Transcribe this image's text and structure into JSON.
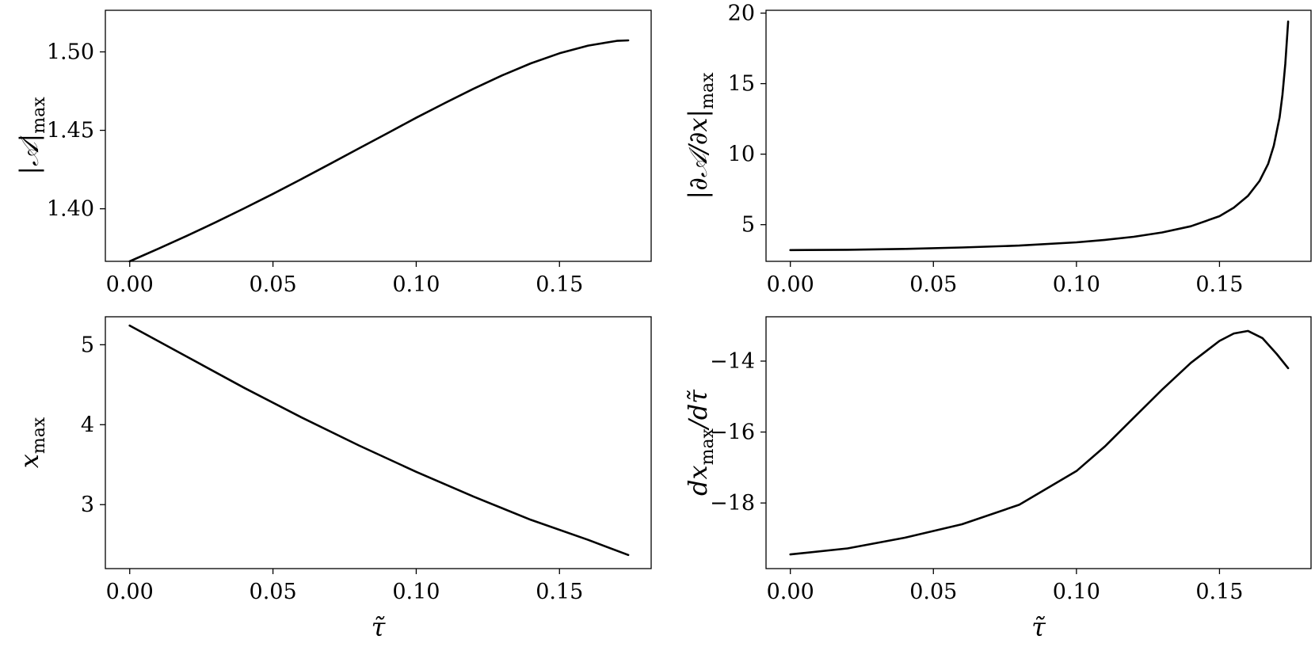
{
  "chart_data": [
    {
      "type": "line",
      "xlabel": "",
      "ylabel": {
        "main": "|𝒜|",
        "sub": "max"
      },
      "xlim": [
        -0.0085,
        0.182
      ],
      "ylim": [
        1.3665,
        1.5265
      ],
      "xticks": [
        0.0,
        0.05,
        0.1,
        0.15
      ],
      "xtick_labels": [
        "0.00",
        "0.05",
        "0.10",
        "0.15"
      ],
      "yticks": [
        1.4,
        1.45,
        1.5
      ],
      "ytick_labels": [
        "1.40",
        "1.45",
        "1.50"
      ],
      "x": [
        0,
        0.01,
        0.02,
        0.03,
        0.04,
        0.05,
        0.06,
        0.07,
        0.08,
        0.09,
        0.1,
        0.11,
        0.12,
        0.13,
        0.14,
        0.15,
        0.16,
        0.17,
        0.174
      ],
      "y": [
        1.3665,
        1.3745,
        1.3828,
        1.3914,
        1.4003,
        1.4095,
        1.419,
        1.4287,
        1.4385,
        1.4482,
        1.458,
        1.4674,
        1.4765,
        1.485,
        1.4927,
        1.4991,
        1.504,
        1.507,
        1.5073
      ]
    },
    {
      "type": "line",
      "xlabel": "",
      "ylabel": {
        "main": "|∂𝒜/∂x|",
        "sub": "max"
      },
      "xlim": [
        -0.0085,
        0.182
      ],
      "ylim": [
        2.4,
        20.2
      ],
      "xticks": [
        0.0,
        0.05,
        0.1,
        0.15
      ],
      "xtick_labels": [
        "0.00",
        "0.05",
        "0.10",
        "0.15"
      ],
      "yticks": [
        5,
        10,
        15,
        20
      ],
      "ytick_labels": [
        "5",
        "10",
        "15",
        "20"
      ],
      "x": [
        0,
        0.02,
        0.04,
        0.06,
        0.08,
        0.1,
        0.11,
        0.12,
        0.13,
        0.14,
        0.15,
        0.155,
        0.16,
        0.164,
        0.167,
        0.169,
        0.171,
        0.172,
        0.173,
        0.174
      ],
      "y": [
        3.2,
        3.22,
        3.28,
        3.38,
        3.52,
        3.75,
        3.92,
        4.14,
        4.45,
        4.89,
        5.6,
        6.2,
        7.05,
        8.1,
        9.3,
        10.6,
        12.6,
        14.2,
        16.4,
        19.4
      ]
    },
    {
      "type": "line",
      "xlabel": "τ̃",
      "ylabel": {
        "main": "x",
        "sub": "max"
      },
      "xlim": [
        -0.0085,
        0.182
      ],
      "ylim": [
        2.2,
        5.35
      ],
      "xticks": [
        0.0,
        0.05,
        0.1,
        0.15
      ],
      "xtick_labels": [
        "0.00",
        "0.05",
        "0.10",
        "0.15"
      ],
      "yticks": [
        3,
        4,
        5
      ],
      "ytick_labels": [
        "3",
        "4",
        "5"
      ],
      "x": [
        0,
        0.02,
        0.04,
        0.06,
        0.08,
        0.1,
        0.12,
        0.14,
        0.16,
        0.174
      ],
      "y": [
        5.24,
        4.85,
        4.46,
        4.09,
        3.74,
        3.41,
        3.1,
        2.81,
        2.56,
        2.37
      ]
    },
    {
      "type": "line",
      "xlabel": "τ̃",
      "ylabel": {
        "main": "dx",
        "sub": "max",
        "tail": "/dτ̃"
      },
      "xlim": [
        -0.0085,
        0.182
      ],
      "ylim": [
        -19.85,
        -12.75
      ],
      "xticks": [
        0.0,
        0.05,
        0.1,
        0.15
      ],
      "xtick_labels": [
        "0.00",
        "0.05",
        "0.10",
        "0.15"
      ],
      "yticks": [
        -14,
        -16,
        -18
      ],
      "ytick_labels": [
        "−14",
        "−16",
        "−18"
      ],
      "x": [
        0,
        0.02,
        0.04,
        0.06,
        0.08,
        0.1,
        0.11,
        0.12,
        0.13,
        0.14,
        0.15,
        0.155,
        0.16,
        0.165,
        0.17,
        0.174
      ],
      "y": [
        -19.45,
        -19.28,
        -18.98,
        -18.6,
        -18.05,
        -17.1,
        -16.4,
        -15.6,
        -14.8,
        -14.05,
        -13.43,
        -13.22,
        -13.15,
        -13.35,
        -13.8,
        -14.2
      ]
    }
  ]
}
